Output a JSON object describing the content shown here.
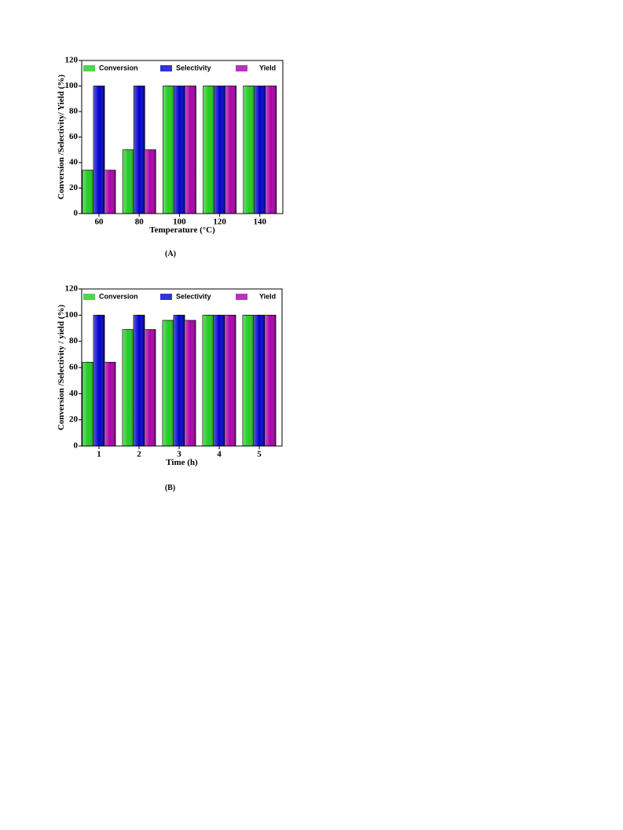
{
  "chart_data": [
    {
      "type": "bar",
      "caption": "(A)",
      "x_label": "Temperature (°C)",
      "y_label": "Conversion /Selectivity/ Yield (%)",
      "categories": [
        "60",
        "80",
        "100",
        "120",
        "140"
      ],
      "series": [
        {
          "name": "Conversion",
          "color": "#22cc22",
          "values": [
            34,
            50,
            100,
            100,
            100
          ]
        },
        {
          "name": "Selectivity",
          "color": "#0000cc",
          "values": [
            100,
            100,
            100,
            100,
            100
          ]
        },
        {
          "name": "Yield",
          "color": "#aa00aa",
          "values": [
            34,
            50,
            100,
            100,
            100
          ]
        }
      ],
      "ylim": [
        0,
        120
      ],
      "yticks": [
        0,
        20,
        40,
        60,
        80,
        100,
        120
      ]
    },
    {
      "type": "bar",
      "caption": "(B)",
      "x_label": "Time (h)",
      "y_label": "Conversion /Selectivity / yield (%)",
      "categories": [
        "1",
        "2",
        "3",
        "4",
        "5"
      ],
      "series": [
        {
          "name": "Conversion",
          "color": "#22cc22",
          "values": [
            64,
            89,
            96,
            100,
            100
          ]
        },
        {
          "name": "Selectivity",
          "color": "#0000cc",
          "values": [
            100,
            100,
            100,
            100,
            100
          ]
        },
        {
          "name": "Yield",
          "color": "#aa00aa",
          "values": [
            64,
            89,
            96,
            100,
            100
          ]
        }
      ],
      "ylim": [
        0,
        120
      ],
      "yticks": [
        0,
        20,
        40,
        60,
        80,
        100,
        120
      ]
    }
  ]
}
